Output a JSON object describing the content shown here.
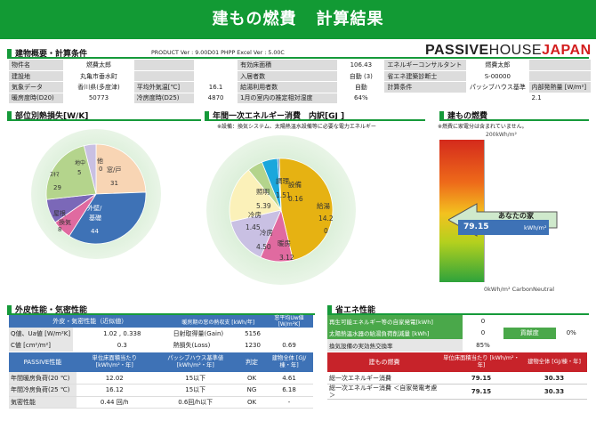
{
  "header": {
    "title_left": "建もの燃費",
    "title_right": "計算結果"
  },
  "overview": {
    "title": "建物概要・計算条件",
    "version": "PRODUCT Ver : 9.00D01  PHPP Excel Ver : 5.00C",
    "logo": {
      "a": "PASSIVE",
      "b": "HOUSE",
      "c": "JAPAN"
    },
    "rows": [
      [
        "物件名",
        "燃費太郎",
        "",
        "",
        "有効床面積",
        "106.43",
        "エネルギーコンサルタント",
        "燃費太郎",
        ""
      ],
      [
        "建設地",
        "丸亀市垂水町",
        "",
        "",
        "入居者数",
        "自動 (3)",
        "省エネ建築診断士",
        "S-00000",
        ""
      ],
      [
        "気象データ",
        "香川県(多度津)",
        "平均外気温[℃]",
        "16.1",
        "給湯利用者数",
        "自動",
        "計算条件",
        "パッシブハウス基準",
        "内部発熱量 [W/m²]"
      ],
      [
        "暖房度時(D20)",
        "50773",
        "冷房度時(D25)",
        "4870",
        "1月の室内の推定相対湿度",
        "64%",
        "",
        "",
        "2.1"
      ]
    ]
  },
  "heatloss": {
    "title": "部位別熱損失[W/K]",
    "slices": [
      {
        "label": "窓/戸",
        "value": 31,
        "color": "#f8d5b4"
      },
      {
        "label": "外壁/基礎",
        "value": 44,
        "color": "#3e72b6"
      },
      {
        "label": "換気",
        "value": 8,
        "color": "#e06aa0"
      },
      {
        "label": "屋根",
        "value": 10,
        "color": "#7b68b8"
      },
      {
        "label": "ｽｷﾏ",
        "value": 29,
        "color": "#b4d48c"
      },
      {
        "label": "地中",
        "value": 5,
        "color": "#c9c0e3"
      },
      {
        "label": "他",
        "value": 0,
        "color": "#9e9e9e"
      }
    ],
    "labels": {
      "mado": "窓/戸",
      "mado_v": "31",
      "gaiheki": "外壁/",
      "kiso": "基礎",
      "gaiheki_v": "44",
      "kanki": "換気",
      "kanki_v": "8",
      "yane": "屋根",
      "sukima": "ｽｷﾏ",
      "sukima_v": "29",
      "chichu": "地中",
      "chichu_v": "5",
      "hoka": "他",
      "hoka_v": "0"
    }
  },
  "energy": {
    "title": "年間一次エネルギー消費　内訳[GJ ]",
    "note": "※設備：換気システム、太陽熱温水設備等に必要な電力エネルギー",
    "slices": [
      {
        "label": "給湯",
        "value": 14.2,
        "color": "#e6b212"
      },
      {
        "label": "暖房",
        "value": 3.12,
        "color": "#e06aa0"
      },
      {
        "label": "冷房",
        "value": 4.5,
        "color": "#c9c0e3"
      },
      {
        "label": "照明",
        "value": 5.39,
        "color": "#fbf1b9"
      },
      {
        "label": "冷房",
        "value": 1.45,
        "color": "#b4d48c"
      },
      {
        "label": "調理",
        "value": 1.51,
        "color": "#1aa7dc"
      },
      {
        "label": "設備",
        "value": 0.16,
        "color": "#3e72b6"
      }
    ],
    "labels": {
      "kyuto": "給湯",
      "kyuto_v1": "14.2",
      "kyuto_v2": "0",
      "danbo": "暖房",
      "danbo_v": "3.12",
      "reibo": "冷房",
      "reibo_v": "4.50",
      "reibo2": "冷房",
      "reibo2_v": "1.45",
      "shomei": "照明",
      "shomei_v": "5.39",
      "chori": "調理",
      "chori_v": "1.51",
      "setsubi": "設備",
      "setsubi_v": "0.16"
    }
  },
  "fuel": {
    "title": "建もの燃費",
    "note": "※燃費に家電分は含まれていません。",
    "top": "200kWh/m²",
    "bottom": "0kWh/m² CarbonNeutral",
    "yours": "あなたの家",
    "value": "79.15",
    "unit": "kWh/m²",
    "level": 0.396
  },
  "envelope": {
    "title": "外皮性能・気密性能",
    "headers": [
      "外皮・気密性能（近似値）",
      "暖房期の窓の熱収支 [kWh/年]",
      "窓平均Uw値 [W/m²K]"
    ],
    "rows": [
      [
        "Q値、Ua値 [W/m²K]",
        "1.02 , 0.338",
        "日射取得量(Gain)",
        "5156",
        ""
      ],
      [
        "C値 [cm²/m²]",
        "0.3",
        "熱損失(Loss)",
        "1230",
        "0.69"
      ]
    ],
    "perf_headers": [
      "PASSIVE性能",
      "単位床面積当たり [kWh/m²・年]",
      "パッシブハウス基準値 [kWh/m²・年]",
      "判定",
      "建物全体 [GJ/棟・年]"
    ],
    "perf_rows": [
      [
        "年間暖房負荷(20 ℃)",
        "12.02",
        "15以下",
        "OK",
        "4.61"
      ],
      [
        "年間冷房負荷(25 ℃)",
        "16.12",
        "15以下",
        "NG",
        "6.18"
      ],
      [
        "気密性能",
        "0.44 回/h",
        "0.6回/h以下",
        "OK",
        "-"
      ]
    ]
  },
  "saving": {
    "title": "省エネ性能",
    "rows": [
      [
        "再生可能エネルギー等の自家発電[kWh]",
        "0",
        "",
        ""
      ],
      [
        "太陽熱温水器の給湯負荷削減量 [kWh]",
        "0",
        "貢献度",
        "0%"
      ],
      [
        "換気設備の実効熱交換率",
        "85%",
        "",
        ""
      ]
    ],
    "fuel_headers": [
      "建もの燃費",
      "単位床面積当たり [kWh/m²・年]",
      "建物全体 [GJ/棟・年]"
    ],
    "fuel_rows": [
      [
        "総一次エネルギー消費",
        "79.15",
        "30.33"
      ],
      [
        "総一次エネルギー消費 ＜自家発電考慮＞",
        "79.15",
        "30.33"
      ]
    ]
  }
}
